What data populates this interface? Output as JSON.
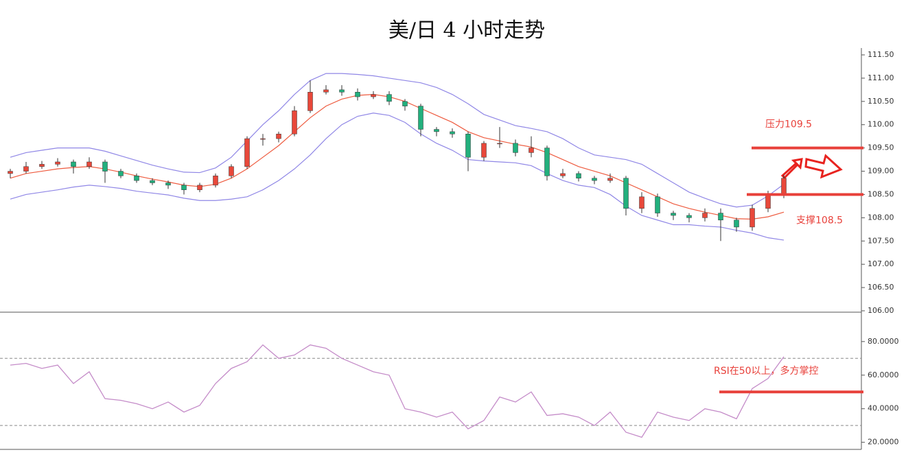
{
  "chart_data": [
    {
      "type": "candlestick",
      "title": "美/日 4 小时走势",
      "open": [
        108.95,
        109.0,
        109.1,
        109.15,
        109.2,
        109.1,
        109.2,
        109.0,
        108.9,
        108.8,
        108.75,
        108.7,
        108.6,
        108.7,
        108.9,
        109.1,
        109.7,
        109.7,
        109.8,
        110.3,
        110.7,
        110.75,
        110.7,
        110.6,
        110.65,
        110.5,
        110.4,
        109.9,
        109.85,
        109.8,
        109.3,
        109.6,
        109.6,
        109.4,
        109.5,
        108.9,
        108.95,
        108.85,
        108.8,
        108.85,
        108.2,
        108.45,
        108.1,
        108.05,
        108.0,
        108.1,
        107.95,
        107.8,
        108.2,
        108.5
      ],
      "high": [
        109.05,
        109.2,
        109.22,
        109.28,
        109.25,
        109.3,
        109.25,
        109.05,
        108.95,
        108.85,
        108.8,
        108.75,
        108.75,
        108.95,
        109.15,
        109.75,
        109.8,
        109.85,
        110.4,
        110.95,
        110.85,
        110.85,
        110.78,
        110.72,
        110.72,
        110.55,
        110.45,
        109.95,
        109.92,
        109.85,
        109.65,
        109.95,
        109.68,
        109.75,
        109.55,
        109.05,
        109.0,
        108.9,
        108.95,
        108.9,
        108.55,
        108.52,
        108.15,
        108.1,
        108.2,
        108.2,
        108.0,
        108.28,
        108.58,
        108.92
      ],
      "low": [
        108.85,
        108.95,
        109.05,
        109.1,
        108.95,
        109.05,
        108.75,
        108.85,
        108.75,
        108.7,
        108.62,
        108.5,
        108.55,
        108.65,
        108.85,
        109.05,
        109.55,
        109.62,
        109.75,
        110.25,
        110.65,
        110.62,
        110.52,
        110.55,
        110.42,
        110.3,
        109.75,
        109.75,
        109.72,
        109.0,
        109.22,
        109.5,
        109.32,
        109.3,
        108.8,
        108.85,
        108.78,
        108.72,
        108.75,
        108.05,
        108.1,
        108.02,
        107.95,
        107.9,
        107.92,
        107.5,
        107.7,
        107.72,
        108.12,
        108.42
      ],
      "close": [
        109.0,
        109.1,
        109.15,
        109.2,
        109.1,
        109.2,
        109.0,
        108.9,
        108.8,
        108.75,
        108.7,
        108.6,
        108.7,
        108.9,
        109.1,
        109.7,
        109.7,
        109.8,
        110.3,
        110.7,
        110.75,
        110.7,
        110.6,
        110.65,
        110.5,
        110.4,
        109.9,
        109.85,
        109.8,
        109.3,
        109.6,
        109.6,
        109.4,
        109.5,
        108.9,
        108.95,
        108.85,
        108.8,
        108.85,
        108.2,
        108.45,
        108.1,
        108.05,
        108.0,
        108.1,
        107.95,
        107.8,
        108.2,
        108.5,
        108.85
      ],
      "up_color": "#e8483a",
      "down_color": "#22b07d",
      "series": [
        {
          "color": "#8f86e6",
          "values": [
            109.3,
            109.4,
            109.45,
            109.5,
            109.5,
            109.5,
            109.43,
            109.33,
            109.23,
            109.13,
            109.05,
            108.98,
            108.97,
            109.07,
            109.3,
            109.65,
            110.0,
            110.3,
            110.65,
            110.95,
            111.1,
            111.1,
            111.08,
            111.05,
            111.0,
            110.95,
            110.9,
            110.8,
            110.65,
            110.45,
            110.22,
            110.1,
            109.98,
            109.92,
            109.85,
            109.7,
            109.5,
            109.35,
            109.3,
            109.25,
            109.15,
            108.95,
            108.75,
            108.55,
            108.42,
            108.3,
            108.23,
            108.27,
            108.47,
            108.72
          ]
        },
        {
          "color": "#ee5a3e",
          "values": [
            108.85,
            108.95,
            109.0,
            109.05,
            109.08,
            109.1,
            109.05,
            108.98,
            108.9,
            108.83,
            108.77,
            108.7,
            108.67,
            108.72,
            108.85,
            109.05,
            109.3,
            109.55,
            109.85,
            110.15,
            110.4,
            110.55,
            110.63,
            110.65,
            110.6,
            110.5,
            110.35,
            110.2,
            110.05,
            109.85,
            109.72,
            109.65,
            109.58,
            109.52,
            109.4,
            109.25,
            109.1,
            109.0,
            108.9,
            108.75,
            108.6,
            108.45,
            108.3,
            108.2,
            108.12,
            108.05,
            107.98,
            107.97,
            108.02,
            108.12
          ]
        },
        {
          "color": "#8f86e6",
          "values": [
            108.4,
            108.5,
            108.55,
            108.6,
            108.66,
            108.7,
            108.67,
            108.63,
            108.57,
            108.53,
            108.49,
            108.42,
            108.37,
            108.37,
            108.4,
            108.45,
            108.6,
            108.8,
            109.05,
            109.35,
            109.7,
            110.0,
            110.18,
            110.25,
            110.2,
            110.05,
            109.8,
            109.6,
            109.45,
            109.25,
            109.22,
            109.2,
            109.18,
            109.12,
            108.95,
            108.8,
            108.7,
            108.65,
            108.5,
            108.25,
            108.05,
            107.95,
            107.85,
            107.85,
            107.82,
            107.8,
            107.73,
            107.67,
            107.57,
            107.52
          ]
        }
      ],
      "levels": [
        {
          "value": 109.5,
          "label": "压力109.5",
          "color": "#e8403a"
        },
        {
          "value": 108.5,
          "label": "支撑108.5",
          "color": "#e8403a"
        }
      ],
      "ylim": [
        106,
        111.5
      ],
      "yticks": [
        {
          "value": 106,
          "label": "106.00"
        },
        {
          "value": 106.5,
          "label": "106.50"
        },
        {
          "value": 107,
          "label": "107.00"
        },
        {
          "value": 107.5,
          "label": "107.50"
        },
        {
          "value": 108,
          "label": "108.00"
        },
        {
          "value": 108.5,
          "label": "108.50"
        },
        {
          "value": 109,
          "label": "109.00"
        },
        {
          "value": 109.5,
          "label": "109.50"
        },
        {
          "value": 110,
          "label": "110.00"
        },
        {
          "value": 110.5,
          "label": "110.50"
        },
        {
          "value": 111,
          "label": "111.00"
        },
        {
          "value": 111.5,
          "label": "111.50"
        }
      ]
    },
    {
      "type": "line",
      "series": [
        {
          "color": "#c48bc8",
          "values": [
            66,
            67,
            64,
            66,
            55,
            62,
            46,
            45,
            43,
            40,
            44,
            38,
            42,
            55,
            64,
            68,
            78,
            70,
            72,
            78,
            76,
            70,
            66,
            62,
            60,
            40,
            38,
            35,
            38,
            28,
            33,
            47,
            44,
            50,
            36,
            37,
            35,
            30,
            38,
            26,
            23,
            38,
            35,
            33,
            40,
            38,
            34,
            52,
            58,
            71
          ]
        }
      ],
      "guides": [
        30,
        70
      ],
      "levels": [
        {
          "value": 50,
          "label": "RSI在50以上，多方掌控",
          "color": "#e8403a"
        }
      ],
      "ylim": [
        17,
        97.5
      ],
      "yticks": [
        {
          "value": 20,
          "label": "20.0000"
        },
        {
          "value": 40,
          "label": "40.0000"
        },
        {
          "value": 60,
          "label": "60.0000"
        },
        {
          "value": 80,
          "label": "80.0000"
        }
      ]
    }
  ]
}
